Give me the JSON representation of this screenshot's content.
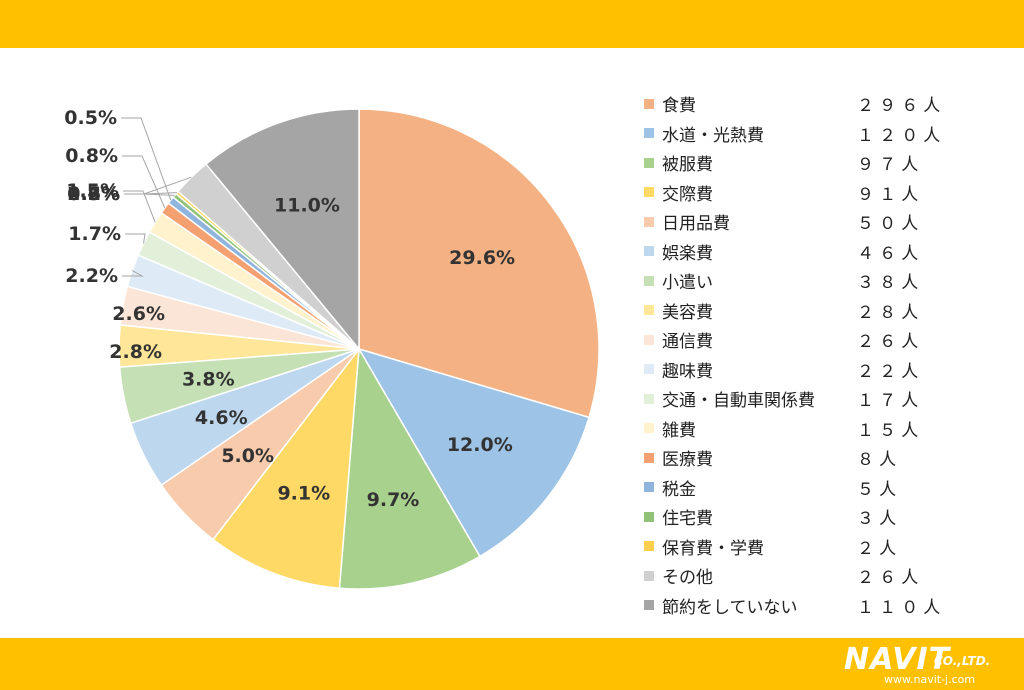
{
  "colors": {
    "brand_yellow": "#FFC000",
    "label_text": "#333333",
    "leader_line": "#A6A6A6"
  },
  "chart_data": {
    "type": "pie",
    "start_angle": "top",
    "direction": "clockwise",
    "legend_position": "right",
    "slices": [
      {
        "name": "食費",
        "value": 29.6,
        "label": "29.6%",
        "count": "２９６人",
        "color": "#F4B183"
      },
      {
        "name": "水道・光熱費",
        "value": 12.0,
        "label": "12.0%",
        "count": "１２０人",
        "color": "#9DC3E6"
      },
      {
        "name": "被服費",
        "value": 9.7,
        "label": "9.7%",
        "count": "９７人",
        "color": "#A9D18E"
      },
      {
        "name": "交際費",
        "value": 9.1,
        "label": "9.1%",
        "count": "９１人",
        "color": "#FFD966"
      },
      {
        "name": "日用品費",
        "value": 5.0,
        "label": "5.0%",
        "count": "５０人",
        "color": "#F8CBAD"
      },
      {
        "name": "娯楽費",
        "value": 4.6,
        "label": "4.6%",
        "count": "４６人",
        "color": "#BDD7EE"
      },
      {
        "name": "小遣い",
        "value": 3.8,
        "label": "3.8%",
        "count": "３８人",
        "color": "#C5E0B4"
      },
      {
        "name": "美容費",
        "value": 2.8,
        "label": "2.8%",
        "count": "２８人",
        "color": "#FFE699"
      },
      {
        "name": "通信費",
        "value": 2.6,
        "label": "2.6%",
        "count": "２６人",
        "color": "#FBE5D6"
      },
      {
        "name": "趣味費",
        "value": 2.2,
        "label": "2.2%",
        "count": "２２人",
        "color": "#DEEBF7"
      },
      {
        "name": "交通・自動車関係費",
        "value": 1.7,
        "label": "1.7%",
        "count": "１７人",
        "color": "#E2F0D9"
      },
      {
        "name": "雑費",
        "value": 1.5,
        "label": "1.5%",
        "count": "１５人",
        "color": "#FFF2CC"
      },
      {
        "name": "医療費",
        "value": 0.8,
        "label": "0.8%",
        "count": "８人",
        "color": "#F4A070"
      },
      {
        "name": "税金",
        "value": 0.5,
        "label": "0.5%",
        "count": "５人",
        "color": "#8FB4DD"
      },
      {
        "name": "住宅費",
        "value": 0.3,
        "label": "0.3%",
        "count": "３人",
        "color": "#90C278"
      },
      {
        "name": "保育費・学費",
        "value": 0.2,
        "label": "0.2%",
        "count": "２人",
        "color": "#FFCF4D"
      },
      {
        "name": "その他",
        "value": 2.6,
        "label": "2.6%",
        "count": "２６人",
        "color": "#D0D0D0"
      },
      {
        "name": "節約をしていない",
        "value": 11.0,
        "label": "11.0%",
        "count": "１１０人",
        "color": "#A5A5A5"
      }
    ]
  },
  "logo": {
    "main": "NAVIT",
    "sub": "CO.,LTD.",
    "url": "www.navit-j.com"
  }
}
